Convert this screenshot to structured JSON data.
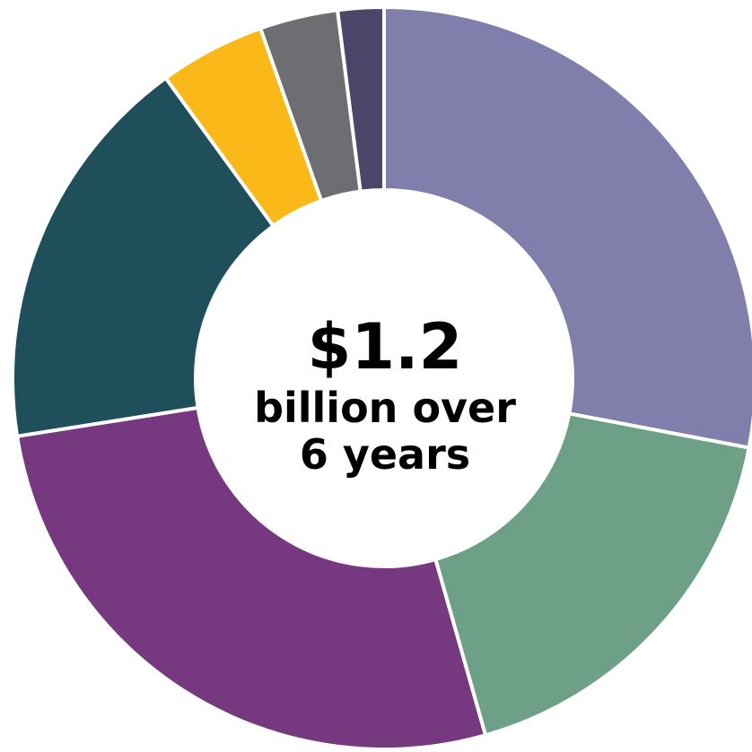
{
  "chart_data": {
    "type": "pie",
    "donut": true,
    "unit": "percent",
    "slices": [
      {
        "value": 28.0,
        "color": "#807fab"
      },
      {
        "value": 17.6,
        "color": "#6ea087"
      },
      {
        "value": 26.9,
        "color": "#76387e"
      },
      {
        "value": 17.5,
        "color": "#1f4f5b"
      },
      {
        "value": 4.6,
        "color": "#fab919"
      },
      {
        "value": 3.4,
        "color": "#6d6e71"
      },
      {
        "value": 2.0,
        "color": "#4a476b"
      }
    ],
    "center_text": {
      "amount": "$1.2",
      "line1": "billion over",
      "line2": "6 years"
    }
  }
}
